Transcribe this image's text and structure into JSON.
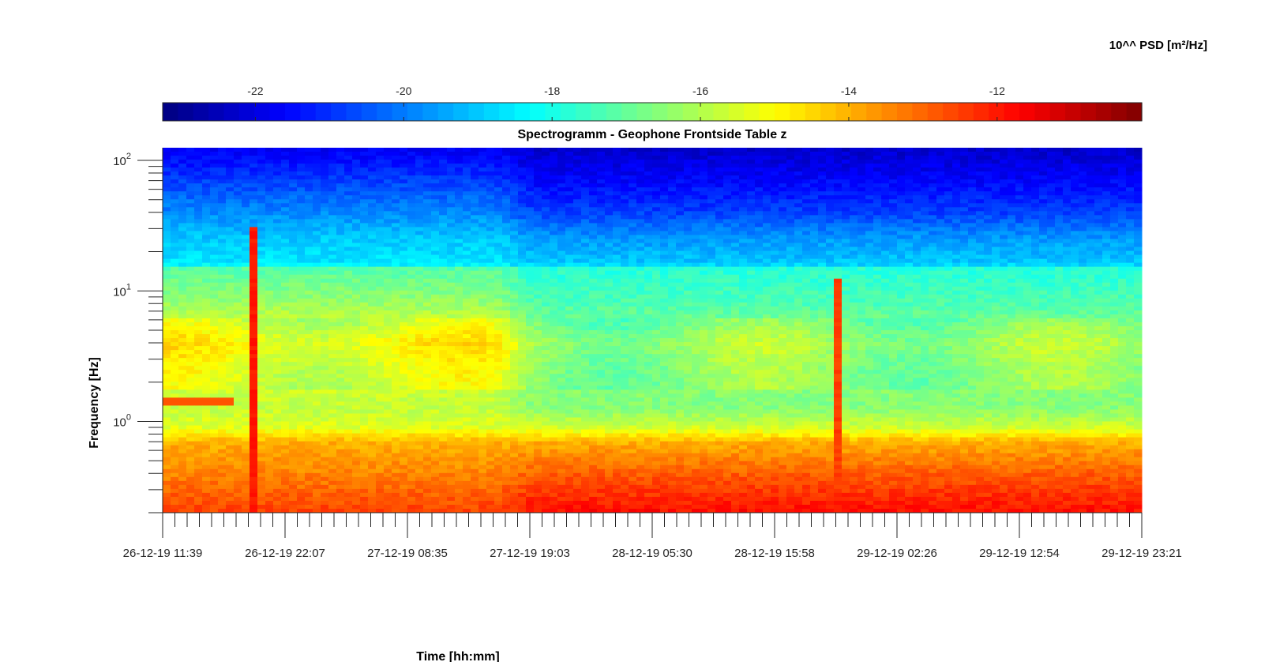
{
  "chart_data": {
    "type": "heatmap",
    "title": "Spectrogramm - Geophone Frontside Table z",
    "xlabel": "Time [hh:mm]",
    "ylabel": "Frequency [Hz]",
    "colorbar": {
      "label": "10^^ PSD [m²/Hz]",
      "ticks": [
        "-22",
        "-20",
        "-18",
        "-16",
        "-14",
        "-12"
      ],
      "tick_values": [
        -22,
        -20,
        -18,
        -16,
        -14,
        -12
      ],
      "range": [
        -23.25,
        -10.05
      ],
      "colormap": "jet",
      "location": "top"
    },
    "x_tick_labels": [
      "26-12-19 11:39",
      "26-12-19 22:07",
      "27-12-19 08:35",
      "27-12-19 19:03",
      "28-12-19 05:30",
      "28-12-19 15:58",
      "29-12-19 02:26",
      "29-12-19 12:54",
      "29-12-19 23:21"
    ],
    "xlim": [
      "26-12-19 11:39",
      "29-12-19 23:21"
    ],
    "y_scale": "log",
    "y_tick_labels": [
      {
        "base": "10",
        "exp": "0"
      },
      {
        "base": "10",
        "exp": "1"
      },
      {
        "base": "10",
        "exp": "2"
      }
    ],
    "ylim": [
      0.2,
      125
    ],
    "grid": false,
    "profile_log10psd": [
      {
        "f_hz": 125,
        "early": -21.8,
        "late": -22.3
      },
      {
        "f_hz": 70,
        "early": -20.8,
        "late": -21.6
      },
      {
        "f_hz": 40,
        "early": -19.8,
        "late": -20.8
      },
      {
        "f_hz": 25,
        "early": -19.0,
        "late": -19.6
      },
      {
        "f_hz": 16,
        "early": -18.6,
        "late": -19.0
      },
      {
        "f_hz": 15,
        "early": -17.2,
        "late": -17.8
      },
      {
        "f_hz": 8,
        "early": -16.3,
        "late": -17.3
      },
      {
        "f_hz": 4,
        "early": -15.0,
        "late": -16.2
      },
      {
        "f_hz": 2.5,
        "early": -15.4,
        "late": -16.5
      },
      {
        "f_hz": 1.3,
        "early": -15.8,
        "late": -16.6
      },
      {
        "f_hz": 0.9,
        "early": -15.4,
        "late": -15.6
      },
      {
        "f_hz": 0.7,
        "early": -14.0,
        "late": -14.0
      },
      {
        "f_hz": 0.4,
        "early": -13.4,
        "late": -12.9
      },
      {
        "f_hz": 0.2,
        "early": -12.5,
        "late": -11.8
      }
    ],
    "transient_events": [
      {
        "time": "26-12-19 21:15",
        "f_max_hz": 30,
        "log10psd": -12.0
      },
      {
        "time": "28-12-19 20:45",
        "f_max_hz": 12,
        "log10psd": -12.5
      }
    ],
    "narrowband_line": {
      "f_hz": 1.4,
      "t_start": "26-12-19 11:39",
      "t_end": "26-12-19 17:30",
      "log10psd": -12.8
    }
  }
}
